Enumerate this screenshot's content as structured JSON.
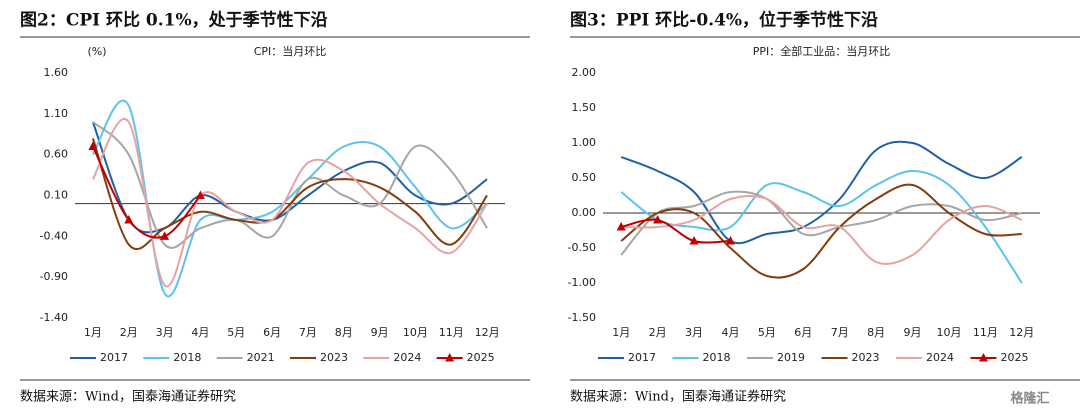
{
  "chart_data": [
    {
      "type": "line",
      "title": "图2：CPI 环比 0.1%，处于季节性下沿",
      "subtitle": "CPI：当月环比",
      "y_unit": "(%)",
      "categories": [
        "1月",
        "2月",
        "3月",
        "4月",
        "5月",
        "6月",
        "7月",
        "8月",
        "9月",
        "10月",
        "11月",
        "12月"
      ],
      "ylim": [
        -1.4,
        1.6
      ],
      "yticks": [
        {
          "value": -1.4,
          "label": "-1.40"
        },
        {
          "value": -0.9,
          "label": "-0.90"
        },
        {
          "value": -0.4,
          "label": "-0.40"
        },
        {
          "value": 0.1,
          "label": "0.10"
        },
        {
          "value": 0.6,
          "label": "0.60"
        },
        {
          "value": 1.1,
          "label": "1.10"
        },
        {
          "value": 1.6,
          "label": "1.60"
        }
      ],
      "series": [
        {
          "name": "2017",
          "color": "#1f5fa8",
          "values": [
            1.0,
            -0.2,
            -0.3,
            0.1,
            -0.1,
            -0.2,
            0.1,
            0.4,
            0.5,
            0.1,
            0.0,
            0.3
          ]
        },
        {
          "name": "2018",
          "color": "#5bc3ec",
          "values": [
            0.6,
            1.2,
            -1.1,
            -0.2,
            -0.2,
            -0.1,
            0.3,
            0.7,
            0.7,
            0.2,
            -0.3,
            0.0
          ]
        },
        {
          "name": "2021",
          "color": "#a6a6a6",
          "values": [
            1.0,
            0.6,
            -0.5,
            -0.3,
            -0.2,
            -0.4,
            0.3,
            0.1,
            0.0,
            0.7,
            0.4,
            -0.3
          ]
        },
        {
          "name": "2023",
          "color": "#843c0c",
          "values": [
            0.8,
            -0.5,
            -0.3,
            -0.1,
            -0.2,
            -0.2,
            0.2,
            0.3,
            0.2,
            -0.1,
            -0.5,
            0.1
          ]
        },
        {
          "name": "2024",
          "color": "#e8a2a2",
          "values": [
            0.3,
            1.0,
            -1.0,
            0.1,
            -0.1,
            -0.2,
            0.5,
            0.4,
            0.0,
            -0.3,
            -0.6,
            0.0
          ]
        },
        {
          "name": "2025",
          "color": "#c00000",
          "marker": "triangle",
          "values": [
            0.7,
            -0.2,
            -0.4,
            0.1,
            null,
            null,
            null,
            null,
            null,
            null,
            null,
            null
          ]
        }
      ],
      "source": "数据来源：Wind，国泰海通证券研究"
    },
    {
      "type": "line",
      "title": "图3：PPI 环比-0.4%，位于季节性下沿",
      "subtitle": "PPI：全部工业品：当月环比",
      "categories": [
        "1月",
        "2月",
        "3月",
        "4月",
        "5月",
        "6月",
        "7月",
        "8月",
        "9月",
        "10月",
        "11月",
        "12月"
      ],
      "ylim": [
        -1.5,
        2.0
      ],
      "yticks": [
        {
          "value": -1.5,
          "label": "-1.50"
        },
        {
          "value": -1.0,
          "label": "-1.00"
        },
        {
          "value": -0.5,
          "label": "-0.50"
        },
        {
          "value": 0,
          "label": "0.00"
        },
        {
          "value": 0.5,
          "label": "0.50"
        },
        {
          "value": 1.0,
          "label": "1.00"
        },
        {
          "value": 1.5,
          "label": "1.50"
        },
        {
          "value": 2.0,
          "label": "2.00"
        }
      ],
      "series": [
        {
          "name": "2017",
          "color": "#1f5fa8",
          "values": [
            0.8,
            0.6,
            0.3,
            -0.4,
            -0.3,
            -0.2,
            0.2,
            0.9,
            1.0,
            0.7,
            0.5,
            0.8
          ]
        },
        {
          "name": "2018",
          "color": "#5bc3ec",
          "values": [
            0.3,
            -0.1,
            -0.2,
            -0.2,
            0.4,
            0.3,
            0.1,
            0.4,
            0.6,
            0.4,
            -0.2,
            -1.0
          ]
        },
        {
          "name": "2019",
          "color": "#a6a6a6",
          "values": [
            -0.6,
            0.0,
            0.1,
            0.3,
            0.2,
            -0.3,
            -0.2,
            -0.1,
            0.1,
            0.1,
            -0.1,
            0.0
          ]
        },
        {
          "name": "2023",
          "color": "#843c0c",
          "values": [
            -0.4,
            0.0,
            0.0,
            -0.5,
            -0.9,
            -0.8,
            -0.2,
            0.2,
            0.4,
            0.0,
            -0.3,
            -0.3
          ]
        },
        {
          "name": "2024",
          "color": "#e8a2a2",
          "values": [
            -0.2,
            -0.2,
            -0.1,
            0.2,
            0.2,
            -0.2,
            -0.2,
            -0.7,
            -0.6,
            -0.1,
            0.1,
            -0.1
          ]
        },
        {
          "name": "2025",
          "color": "#c00000",
          "marker": "triangle",
          "values": [
            -0.2,
            -0.1,
            -0.4,
            -0.4,
            null,
            null,
            null,
            null,
            null,
            null,
            null,
            null
          ]
        }
      ],
      "source": "数据来源：Wind，国泰海通证券研究"
    }
  ],
  "watermark": "格隆汇"
}
